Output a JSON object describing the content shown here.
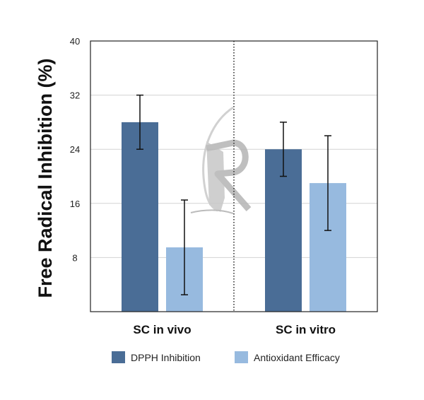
{
  "chart_data": {
    "type": "bar",
    "ylabel": "Free Radical Inhibition (%)",
    "xlabel": "",
    "ylim": [
      0,
      40
    ],
    "yticks": [
      8,
      16,
      24,
      32,
      40
    ],
    "grid": true,
    "legend_position": "bottom",
    "categories": [
      "SC in vivo",
      "SC in vitro"
    ],
    "series": [
      {
        "name": "DPPH Inhibition",
        "color": "#4a6d96",
        "values": [
          28,
          24
        ],
        "errors": [
          4,
          4
        ]
      },
      {
        "name": "Antioxidant Efficacy",
        "color": "#97badf",
        "values": [
          9.5,
          19
        ],
        "errors": [
          7,
          7
        ]
      }
    ],
    "watermark": "R"
  }
}
